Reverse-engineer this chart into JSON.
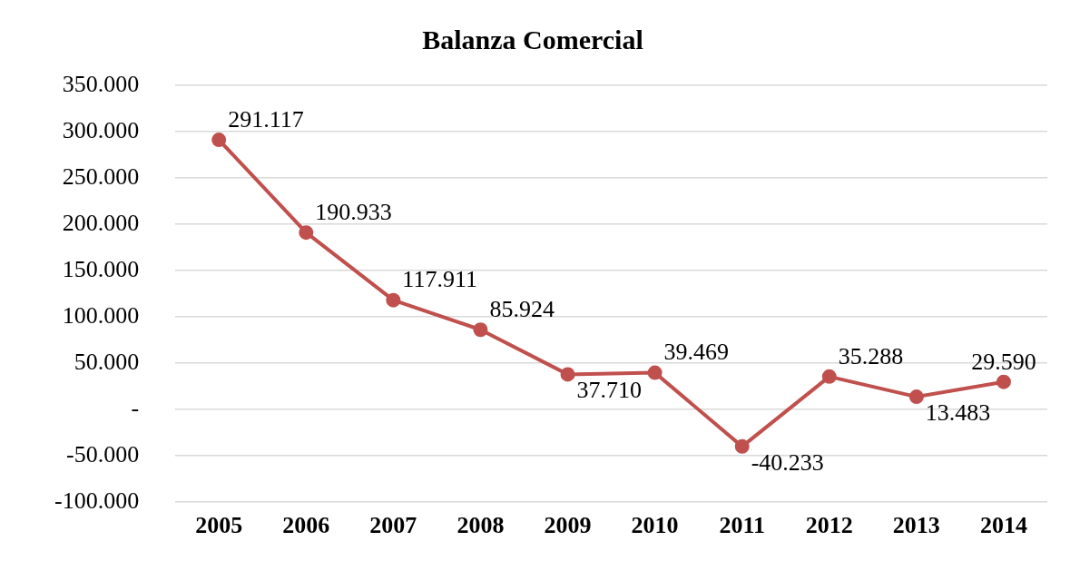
{
  "chart_data": {
    "type": "line",
    "title": "Balanza Comercial",
    "categories": [
      "2005",
      "2006",
      "2007",
      "2008",
      "2009",
      "2010",
      "2011",
      "2012",
      "2013",
      "2014"
    ],
    "series": [
      {
        "color": "#c0504d",
        "values": [
          291117,
          190933,
          117911,
          85924,
          37710,
          39469,
          -40233,
          35288,
          13483,
          29590
        ],
        "value_labels": [
          "291.117",
          "190.933",
          "117.911",
          "85.924",
          "37.710",
          "39.469",
          "-40.233",
          "35.288",
          "13.483",
          "29.590"
        ]
      }
    ],
    "ylim": [
      -100000,
      350000
    ],
    "yticks": [
      {
        "value": -100000,
        "label": "-100.000"
      },
      {
        "value": -50000,
        "label": "-50.000"
      },
      {
        "value": 0,
        "label": "-"
      },
      {
        "value": 50000,
        "label": "50.000"
      },
      {
        "value": 100000,
        "label": "100.000"
      },
      {
        "value": 150000,
        "label": "150.000"
      },
      {
        "value": 200000,
        "label": "200.000"
      },
      {
        "value": 250000,
        "label": "250.000"
      },
      {
        "value": 300000,
        "label": "300.000"
      },
      {
        "value": 350000,
        "label": "350.000"
      }
    ],
    "grid": "y",
    "marker": "circle",
    "line_style": "solid"
  }
}
